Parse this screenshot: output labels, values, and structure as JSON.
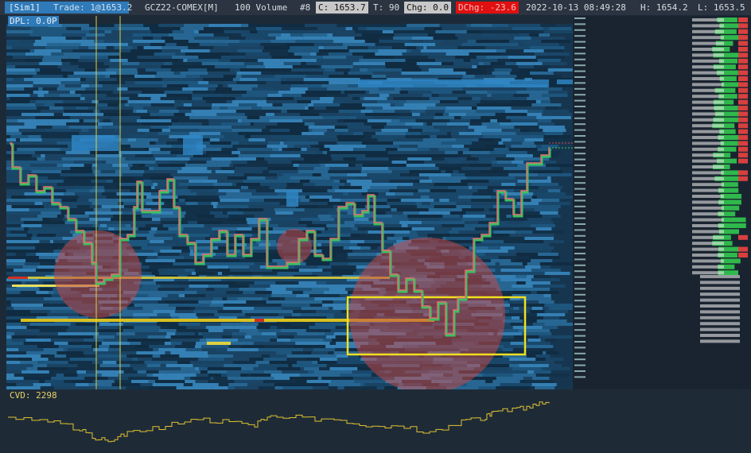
{
  "toolbar": {
    "account": "[Sim1]",
    "trade": "Trade: 1@1653.2",
    "instrument": "GCZ22-COMEX[M]",
    "bar_type": "100 Volume",
    "tab": "#8",
    "close": "C: 1653.7",
    "ticks": "T: 90",
    "change": "Chg: 0.0",
    "daily_change": "DChg: -23.6",
    "timestamp": "2022-10-13 08:49:28",
    "high": "H: 1654.2",
    "low": "L: 1653.5"
  },
  "chart": {
    "dpl": "DPL: 0.0P",
    "cvd": "CVD: 2298"
  }
}
